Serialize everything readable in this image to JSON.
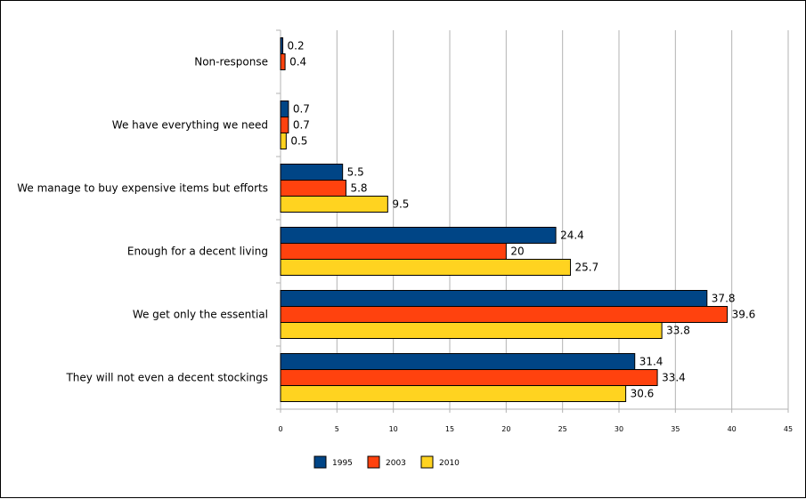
{
  "chart_data": {
    "type": "bar",
    "orientation": "horizontal",
    "categories": [
      "Non-response",
      "We have everything we need",
      "We manage to buy expensive items but efforts",
      "Enough for a decent living",
      "We get only the essential",
      "They will not even a decent stockings"
    ],
    "series": [
      {
        "name": "1995",
        "color": "#004586",
        "values": [
          0.2,
          0.7,
          5.5,
          24.4,
          37.8,
          31.4
        ]
      },
      {
        "name": "2003",
        "color": "#ff420e",
        "values": [
          0.4,
          0.7,
          5.8,
          20,
          39.6,
          33.4
        ]
      },
      {
        "name": "2010",
        "color": "#ffd320",
        "values": [
          null,
          0.5,
          9.5,
          25.7,
          33.8,
          30.6
        ]
      }
    ],
    "xlim": [
      0,
      45
    ],
    "xticks": [
      0,
      5,
      10,
      15,
      20,
      25,
      30,
      35,
      40,
      45
    ],
    "grid": true,
    "legend_position": "bottom",
    "title": "",
    "xlabel": "",
    "ylabel": ""
  }
}
